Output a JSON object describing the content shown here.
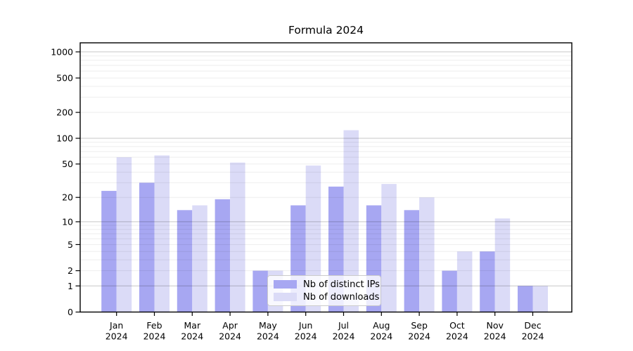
{
  "chart_data": {
    "type": "bar",
    "title": "Formula 2024",
    "categories": [
      {
        "month": "Jan",
        "year": "2024"
      },
      {
        "month": "Feb",
        "year": "2024"
      },
      {
        "month": "Mar",
        "year": "2024"
      },
      {
        "month": "Apr",
        "year": "2024"
      },
      {
        "month": "May",
        "year": "2024"
      },
      {
        "month": "Jun",
        "year": "2024"
      },
      {
        "month": "Jul",
        "year": "2024"
      },
      {
        "month": "Aug",
        "year": "2024"
      },
      {
        "month": "Sep",
        "year": "2024"
      },
      {
        "month": "Oct",
        "year": "2024"
      },
      {
        "month": "Nov",
        "year": "2024"
      },
      {
        "month": "Dec",
        "year": "2024"
      }
    ],
    "series": [
      {
        "name": "Nb of distinct IPs",
        "color": "#a7a7f2",
        "values": [
          24,
          30,
          14,
          19,
          2,
          16,
          27,
          16,
          14,
          2,
          4,
          1
        ]
      },
      {
        "name": "Nb of downloads",
        "color": "#dbdbf7",
        "values": [
          60,
          63,
          16,
          52,
          2,
          48,
          124,
          29,
          20,
          4,
          11,
          1
        ]
      }
    ],
    "y_axis": {
      "scale": "log10(value+1)",
      "tick_values": [
        0,
        1,
        2,
        5,
        10,
        20,
        50,
        100,
        200,
        500,
        1000
      ],
      "tick_labels": [
        "0",
        "1",
        "2",
        "5",
        "10",
        "20",
        "50",
        "100",
        "200",
        "500",
        "1000"
      ],
      "ylim": [
        0,
        1280
      ],
      "grid": "on",
      "major_grid_values": [
        1,
        10,
        100,
        1000
      ]
    },
    "legend": {
      "position": "lower-center",
      "entries": [
        "Nb of distinct IPs",
        "Nb of downloads"
      ]
    }
  }
}
